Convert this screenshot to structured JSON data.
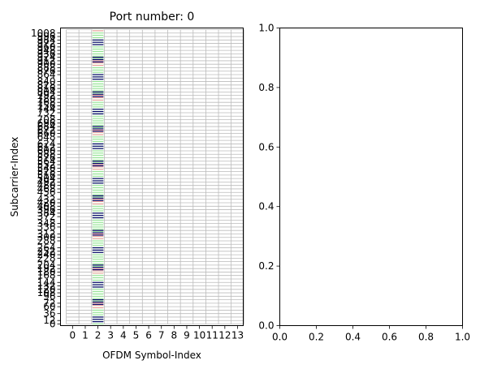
{
  "chart_data": [
    {
      "type": "heatmap",
      "title": "Port number: 0",
      "xlabel": "OFDM Symbol-Index",
      "ylabel": "Subcarrier-Index",
      "x_ticks": [
        0,
        1,
        2,
        3,
        4,
        5,
        6,
        7,
        8,
        9,
        10,
        11,
        12,
        13
      ],
      "x_tick_labels": [
        "0",
        "1",
        "2",
        "3",
        "4",
        "5",
        "6",
        "7",
        "8",
        "9",
        "10",
        "11",
        "12",
        "13"
      ],
      "ylim": [
        0,
        1020
      ],
      "y_ticks": [
        0,
        12,
        36,
        60,
        72,
        96,
        108,
        120,
        132,
        144,
        168,
        180,
        192,
        204,
        228,
        240,
        252,
        264,
        288,
        300,
        312,
        336,
        348,
        372,
        384,
        396,
        408,
        420,
        432,
        456,
        468,
        480,
        492,
        504,
        516,
        528,
        540,
        552,
        564,
        576,
        588,
        600,
        612,
        624,
        648,
        660,
        672,
        684,
        696,
        708,
        732,
        744,
        756,
        768,
        780,
        792,
        804,
        816,
        828,
        840,
        864,
        876,
        888,
        900,
        912,
        924,
        936,
        948,
        960,
        972,
        984,
        996,
        1008
      ],
      "y_tick_labels": [
        "0",
        "12",
        "36",
        "60",
        "72",
        "96",
        "108",
        "120",
        "132",
        "144",
        "168",
        "180",
        "192",
        "204",
        "228",
        "240",
        "252",
        "264",
        "288",
        "300",
        "312",
        "336",
        "348",
        "372",
        "384",
        "396",
        "408",
        "420",
        "432",
        "456",
        "468",
        "480",
        "492",
        "504",
        "516",
        "528",
        "540",
        "552",
        "564",
        "576",
        "588",
        "600",
        "612",
        "624",
        "648",
        "660",
        "672",
        "684",
        "696",
        "708",
        "732",
        "744",
        "756",
        "768",
        "780",
        "792",
        "804",
        "816",
        "828",
        "840",
        "864",
        "876",
        "888",
        "900",
        "912",
        "924",
        "936",
        "948",
        "960",
        "972",
        "984",
        "996",
        "1008"
      ],
      "grid": true,
      "allocated_symbol": 2,
      "highlight_colors": [
        "#ee8888",
        "#88dd88",
        "#000066"
      ],
      "empty_cell_color": "#ffffff",
      "grid_color": "#bbbbbb"
    },
    {
      "type": "empty",
      "title": "",
      "xlim": [
        0,
        1
      ],
      "ylim": [
        0,
        1
      ],
      "x_ticks": [
        0,
        0.2,
        0.4,
        0.6,
        0.8,
        1.0
      ],
      "x_tick_labels": [
        "0.0",
        "0.2",
        "0.4",
        "0.6",
        "0.8",
        "1.0"
      ],
      "y_ticks": [
        0,
        0.2,
        0.4,
        0.6,
        0.8,
        1.0
      ],
      "y_tick_labels": [
        "0.0",
        "0.2",
        "0.4",
        "0.6",
        "0.8",
        "1.0"
      ]
    }
  ]
}
